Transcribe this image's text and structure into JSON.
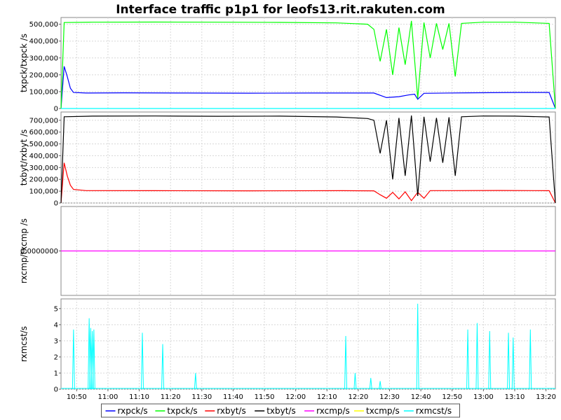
{
  "chart_data": {
    "type": "line",
    "title": "Interface traffic p1p1 for leofs13.rit.rakuten.com",
    "x_tick_labels": [
      "10:50",
      "11:00",
      "11:10",
      "11:20",
      "11:30",
      "11:40",
      "11:50",
      "12:00",
      "12:10",
      "12:20",
      "12:30",
      "12:40",
      "12:50",
      "13:00",
      "13:10",
      "13:20"
    ],
    "x_range_minutes": [
      0,
      158
    ],
    "legend": [
      {
        "name": "rxpck/s",
        "color": "#0000ff"
      },
      {
        "name": "txpck/s",
        "color": "#00ff00"
      },
      {
        "name": "rxbyt/s",
        "color": "#ff0000"
      },
      {
        "name": "txbyt/s",
        "color": "#000000"
      },
      {
        "name": "rxcmp/s",
        "color": "#ff00ff"
      },
      {
        "name": "txcmp/s",
        "color": "#ffff00"
      },
      {
        "name": "rxmcst/s",
        "color": "#00ffff"
      }
    ],
    "panels": [
      {
        "ylabel": "txpck/txpck /s",
        "ylim": [
          0,
          540000
        ],
        "yticks": [
          0,
          100000,
          200000,
          300000,
          400000,
          500000
        ],
        "ytick_labels": [
          "0",
          "100,000",
          "200,000",
          "300,000",
          "400,000",
          "500,000"
        ],
        "series": [
          {
            "name": "rxpck/s",
            "color": "#0000ff",
            "points": [
              [
                0,
                0
              ],
              [
                1,
                250000
              ],
              [
                2,
                190000
              ],
              [
                3,
                120000
              ],
              [
                4,
                95000
              ],
              [
                8,
                92000
              ],
              [
                20,
                93000
              ],
              [
                40,
                92000
              ],
              [
                60,
                91000
              ],
              [
                80,
                92000
              ],
              [
                100,
                92000
              ],
              [
                104,
                65000
              ],
              [
                108,
                70000
              ],
              [
                111,
                80000
              ],
              [
                113,
                85000
              ],
              [
                114,
                55000
              ],
              [
                116,
                90000
              ],
              [
                130,
                93000
              ],
              [
                145,
                95000
              ],
              [
                156,
                95000
              ],
              [
                158,
                0
              ]
            ]
          },
          {
            "name": "txpck/s",
            "color": "#00ff00",
            "points": [
              [
                0,
                0
              ],
              [
                1,
                510000
              ],
              [
                10,
                512000
              ],
              [
                30,
                513000
              ],
              [
                50,
                512000
              ],
              [
                70,
                511000
              ],
              [
                88,
                508000
              ],
              [
                98,
                500000
              ],
              [
                100,
                470000
              ],
              [
                102,
                280000
              ],
              [
                104,
                470000
              ],
              [
                106,
                200000
              ],
              [
                108,
                480000
              ],
              [
                110,
                260000
              ],
              [
                112,
                520000
              ],
              [
                114,
                60000
              ],
              [
                116,
                510000
              ],
              [
                118,
                300000
              ],
              [
                120,
                505000
              ],
              [
                122,
                350000
              ],
              [
                124,
                505000
              ],
              [
                126,
                190000
              ],
              [
                128,
                505000
              ],
              [
                135,
                512000
              ],
              [
                145,
                512000
              ],
              [
                156,
                505000
              ],
              [
                158,
                0
              ]
            ]
          },
          {
            "name": "rxmcst/s",
            "color": "#00ffff",
            "points": [
              [
                0,
                0
              ],
              [
                158,
                0
              ]
            ]
          }
        ]
      },
      {
        "ylabel": "txbyt/rxbyt /s",
        "ylim": [
          0,
          770000
        ],
        "yticks": [
          0,
          100000,
          200000,
          300000,
          400000,
          500000,
          600000,
          700000
        ],
        "ytick_labels": [
          "0",
          "100,000",
          "200,000",
          "300,000",
          "400,000",
          "500,000",
          "600,000",
          "700,000"
        ],
        "series": [
          {
            "name": "rxbyt/s",
            "color": "#ff0000",
            "points": [
              [
                0,
                0
              ],
              [
                1,
                340000
              ],
              [
                2,
                230000
              ],
              [
                3,
                150000
              ],
              [
                4,
                115000
              ],
              [
                8,
                105000
              ],
              [
                30,
                104000
              ],
              [
                60,
                103000
              ],
              [
                90,
                104000
              ],
              [
                100,
                103000
              ],
              [
                102,
                70000
              ],
              [
                104,
                40000
              ],
              [
                106,
                90000
              ],
              [
                108,
                35000
              ],
              [
                110,
                95000
              ],
              [
                112,
                20000
              ],
              [
                114,
                90000
              ],
              [
                116,
                40000
              ],
              [
                118,
                105000
              ],
              [
                125,
                105000
              ],
              [
                140,
                106000
              ],
              [
                156,
                104000
              ],
              [
                158,
                0
              ]
            ]
          },
          {
            "name": "txbyt/s",
            "color": "#000000",
            "points": [
              [
                0,
                0
              ],
              [
                1,
                730000
              ],
              [
                10,
                735000
              ],
              [
                30,
                736000
              ],
              [
                50,
                734000
              ],
              [
                70,
                735000
              ],
              [
                88,
                728000
              ],
              [
                98,
                715000
              ],
              [
                100,
                700000
              ],
              [
                102,
                420000
              ],
              [
                104,
                700000
              ],
              [
                106,
                200000
              ],
              [
                108,
                720000
              ],
              [
                110,
                230000
              ],
              [
                112,
                740000
              ],
              [
                114,
                60000
              ],
              [
                116,
                730000
              ],
              [
                118,
                350000
              ],
              [
                120,
                720000
              ],
              [
                122,
                340000
              ],
              [
                124,
                725000
              ],
              [
                126,
                230000
              ],
              [
                128,
                730000
              ],
              [
                135,
                736000
              ],
              [
                145,
                735000
              ],
              [
                156,
                728000
              ],
              [
                158,
                0
              ]
            ]
          }
        ]
      },
      {
        "ylabel": "rxcmp/txcmp /s",
        "ylim": [
          -1,
          1
        ],
        "yticks": [
          0
        ],
        "ytick_labels": [
          "0.0000000"
        ],
        "series": [
          {
            "name": "rxcmp/s",
            "color": "#ff00ff",
            "points": [
              [
                0,
                0
              ],
              [
                158,
                0
              ]
            ]
          }
        ]
      },
      {
        "ylabel": "rxmcst/s",
        "ylim": [
          0,
          5.6
        ],
        "yticks": [
          0,
          1,
          2,
          3,
          4,
          5
        ],
        "ytick_labels": [
          "0",
          "1",
          "2",
          "3",
          "4",
          "5"
        ],
        "series": [
          {
            "name": "rxmcst/s",
            "color": "#00ffff",
            "spikes": [
              [
                4,
                3.7
              ],
              [
                9,
                4.4
              ],
              [
                9.5,
                3.8
              ],
              [
                10,
                3.6
              ],
              [
                10.5,
                3.7
              ],
              [
                26,
                3.5
              ],
              [
                32.5,
                2.8
              ],
              [
                43,
                1.0
              ],
              [
                91,
                3.3
              ],
              [
                94,
                1.0
              ],
              [
                99,
                0.7
              ],
              [
                102,
                0.5
              ],
              [
                114,
                5.3
              ],
              [
                130,
                3.7
              ],
              [
                133,
                4.1
              ],
              [
                137,
                3.6
              ],
              [
                143,
                3.5
              ],
              [
                144.5,
                3.2
              ],
              [
                150,
                3.7
              ]
            ]
          }
        ]
      }
    ]
  }
}
